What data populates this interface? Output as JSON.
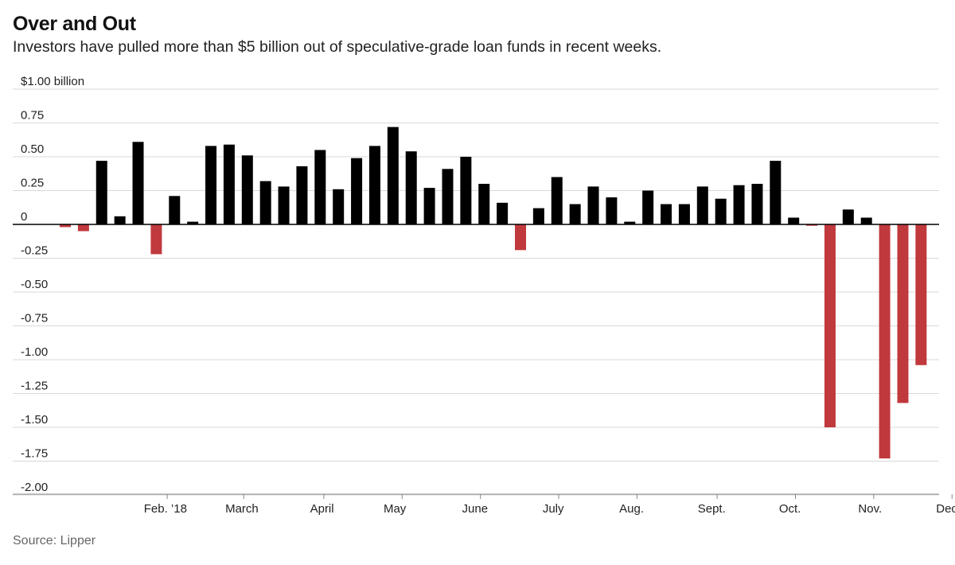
{
  "header": {
    "title": "Over and Out",
    "subtitle": "Investors have pulled more than $5 billion out of speculative-grade loan funds in recent weeks."
  },
  "footer": {
    "source": "Source: Lipper"
  },
  "colors": {
    "positive": "#000000",
    "negative": "#c0393d",
    "grid": "#d9d9d9",
    "zero_line": "#000000"
  },
  "chart_data": {
    "type": "bar",
    "title": "Over and Out",
    "subtitle": "Investors have pulled more than $5 billion out of speculative-grade loan funds in recent weeks.",
    "xlabel": "",
    "ylabel": "",
    "unit_note": "billion",
    "grid": true,
    "ylim": [
      -2.0,
      1.0
    ],
    "y_ticks": [
      {
        "value": 1.0,
        "label": "$1.00 billion"
      },
      {
        "value": 0.75,
        "label": "0.75"
      },
      {
        "value": 0.5,
        "label": "0.50"
      },
      {
        "value": 0.25,
        "label": "0.25"
      },
      {
        "value": 0,
        "label": "0"
      },
      {
        "value": -0.25,
        "label": "-0.25"
      },
      {
        "value": -0.5,
        "label": "-0.50"
      },
      {
        "value": -0.75,
        "label": "-0.75"
      },
      {
        "value": -1.0,
        "label": "-1.00"
      },
      {
        "value": -1.25,
        "label": "-1.25"
      },
      {
        "value": -1.5,
        "label": "-1.50"
      },
      {
        "value": -1.75,
        "label": "-1.75"
      },
      {
        "value": -2.0,
        "label": "-2.00"
      }
    ],
    "month_labels": [
      {
        "label": "Feb. ’18",
        "week_index": 5.5
      },
      {
        "label": "March",
        "week_index": 9.7
      },
      {
        "label": "April",
        "week_index": 14.1
      },
      {
        "label": "May",
        "week_index": 18.1
      },
      {
        "label": "June",
        "week_index": 22.5
      },
      {
        "label": "July",
        "week_index": 26.8
      },
      {
        "label": "Aug.",
        "week_index": 31.1
      },
      {
        "label": "Sept.",
        "week_index": 35.5
      },
      {
        "label": "Oct.",
        "week_index": 39.8
      },
      {
        "label": "Nov.",
        "week_index": 44.2
      },
      {
        "label": "Dec.",
        "week_index": 48.5
      }
    ],
    "month_tick_positions": [
      5.6,
      9.8,
      14.2,
      18.5,
      22.8,
      27.1,
      31.4,
      35.8,
      40.1,
      44.4,
      48.7
    ],
    "values": [
      -0.02,
      -0.05,
      0.47,
      0.06,
      0.61,
      -0.22,
      0.21,
      0.02,
      0.58,
      0.59,
      0.51,
      0.32,
      0.28,
      0.43,
      0.55,
      0.26,
      0.49,
      0.58,
      0.72,
      0.54,
      0.27,
      0.41,
      0.5,
      0.3,
      0.16,
      -0.19,
      0.12,
      0.35,
      0.15,
      0.28,
      0.2,
      0.02,
      0.25,
      0.15,
      0.15,
      0.28,
      0.19,
      0.29,
      0.3,
      0.47,
      0.05,
      -0.01,
      -1.5,
      0.11,
      0.05,
      -1.73,
      -1.32,
      -1.04
    ]
  }
}
